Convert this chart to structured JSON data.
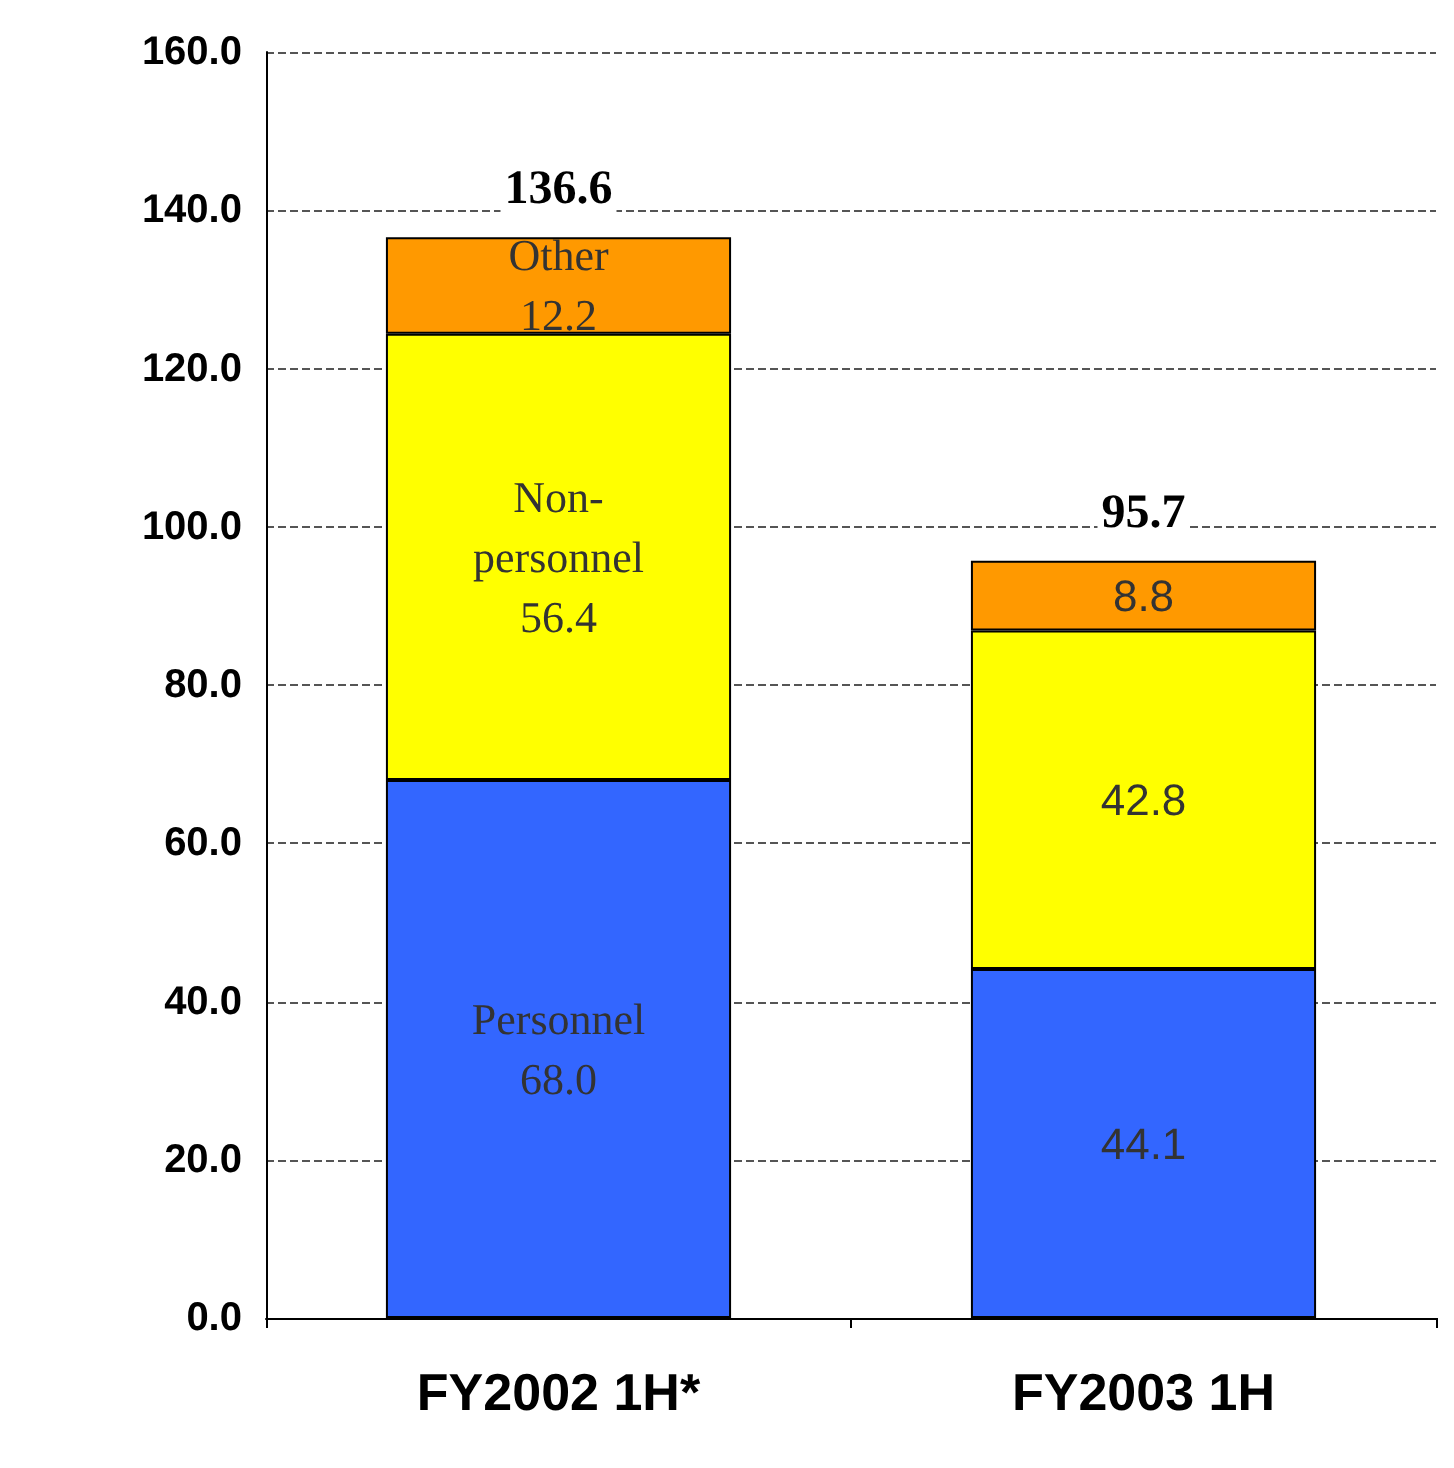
{
  "chart_data": {
    "type": "bar",
    "stacked": true,
    "categories": [
      "FY2002 1H*",
      "FY2003 1H"
    ],
    "series": [
      {
        "color": "#3366ff",
        "values": [
          68.0,
          44.1
        ],
        "value_labels": [
          "Personnel\n68.0",
          "44.1"
        ]
      },
      {
        "color": "#ffff00",
        "values": [
          56.4,
          42.8
        ],
        "value_labels": [
          "Non-\npersonnel\n56.4",
          "42.8"
        ]
      },
      {
        "color": "#ff9900",
        "values": [
          12.2,
          8.8
        ],
        "value_labels": [
          "Other\n12.2",
          "8.8"
        ]
      }
    ],
    "totals": [
      "136.6",
      "95.7"
    ],
    "ylim": [
      0,
      160
    ],
    "yticks": [
      {
        "value": 0,
        "label": "0.0"
      },
      {
        "value": 20,
        "label": "20.0"
      },
      {
        "value": 40,
        "label": "40.0"
      },
      {
        "value": 60,
        "label": "60.0"
      },
      {
        "value": 80,
        "label": "80.0"
      },
      {
        "value": 100,
        "label": "100.0"
      },
      {
        "value": 120,
        "label": "120.0"
      },
      {
        "value": 140,
        "label": "140.0"
      },
      {
        "value": 160,
        "label": "160.0"
      }
    ],
    "grid": "y"
  }
}
